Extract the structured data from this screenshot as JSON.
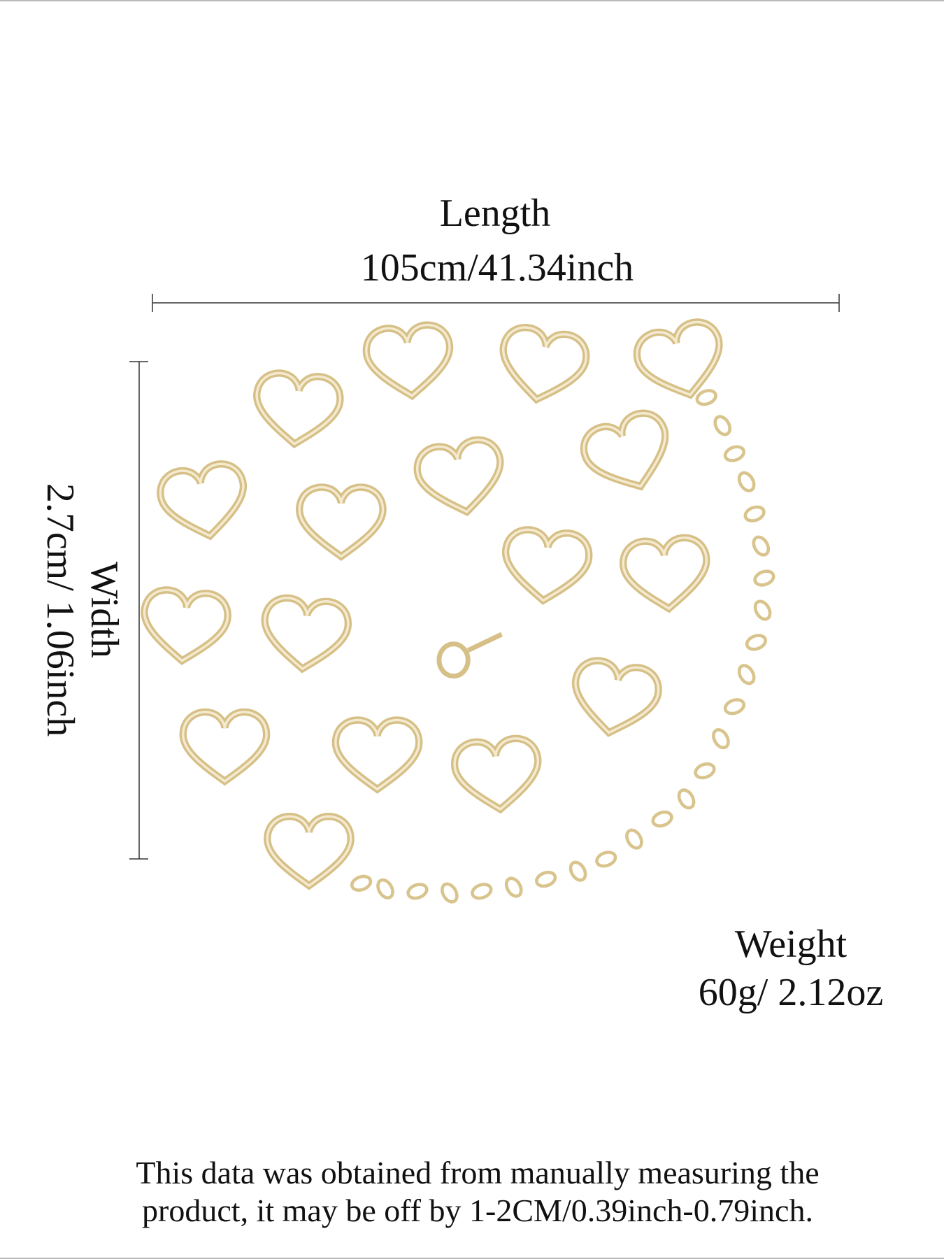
{
  "length": {
    "label": "Length",
    "value": "105cm/41.34inch"
  },
  "width": {
    "label": "Width",
    "value": "2.7cm/ 1.06inch"
  },
  "weight": {
    "label": "Weight",
    "value": "60g/ 2.12oz"
  },
  "note": {
    "lines": [
      "This data was obtained from manually measuring the",
      "product, it may be off by 1-2CM/0.39inch-0.79inch."
    ]
  }
}
